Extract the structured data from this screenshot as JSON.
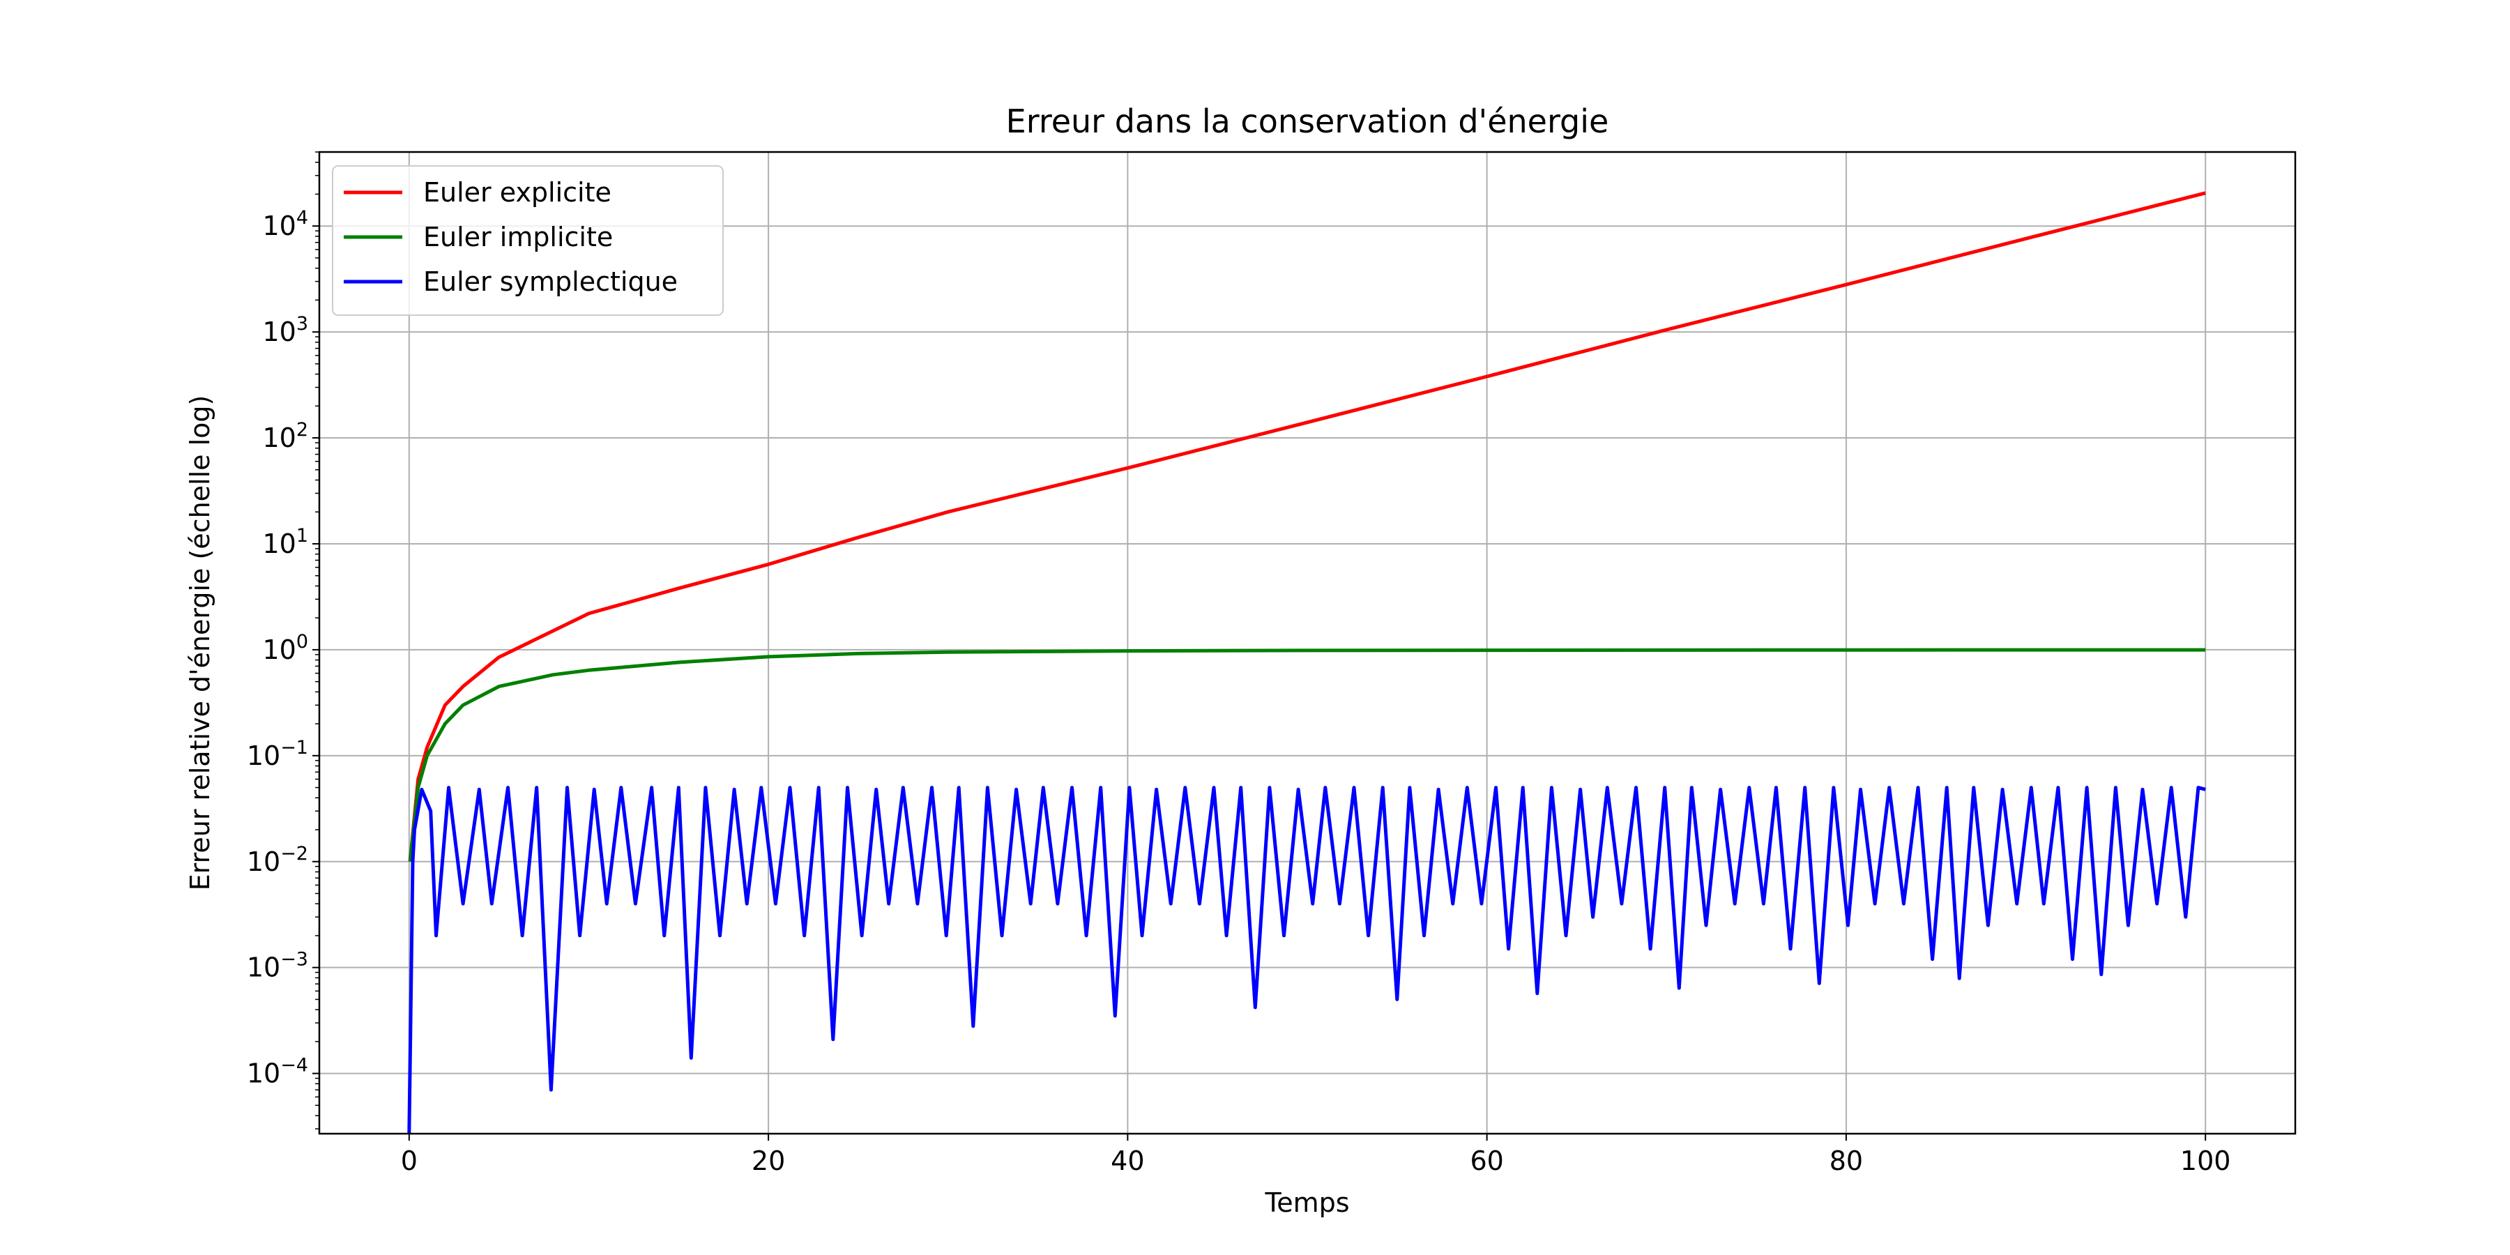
{
  "chart_data": {
    "type": "line",
    "title": "Erreur dans la conservation d'énergie",
    "xlabel": "Temps",
    "ylabel": "Erreur relative d'énergie (échelle log)",
    "xlim": [
      -5,
      105
    ],
    "ylim": [
      2.7e-05,
      50000
    ],
    "yscale": "log",
    "xticks": [
      0,
      20,
      40,
      60,
      80,
      100
    ],
    "yticks": [
      {
        "value": 0.0001,
        "base": "10",
        "exp": "−4"
      },
      {
        "value": 0.001,
        "base": "10",
        "exp": "−3"
      },
      {
        "value": 0.01,
        "base": "10",
        "exp": "−2"
      },
      {
        "value": 0.1,
        "base": "10",
        "exp": "−1"
      },
      {
        "value": 1,
        "base": "10",
        "exp": "0"
      },
      {
        "value": 10,
        "base": "10",
        "exp": "1"
      },
      {
        "value": 100,
        "base": "10",
        "exp": "2"
      },
      {
        "value": 1000,
        "base": "10",
        "exp": "3"
      },
      {
        "value": 10000,
        "base": "10",
        "exp": "4"
      }
    ],
    "grid": true,
    "legend_position": "top-left",
    "series": [
      {
        "name": "Euler explicite",
        "color": "#ff0000",
        "x": [
          0.05,
          0.5,
          1,
          2,
          3,
          5,
          10,
          15,
          20,
          25,
          30,
          40,
          50,
          60,
          70,
          80,
          90,
          100
        ],
        "y": [
          0.01,
          0.06,
          0.12,
          0.3,
          0.45,
          0.85,
          2.2,
          3.8,
          6.4,
          11.5,
          20,
          52,
          140,
          380,
          1050,
          2800,
          7600,
          20500
        ]
      },
      {
        "name": "Euler implicite",
        "color": "#008000",
        "x": [
          0.05,
          0.5,
          1,
          2,
          3,
          5,
          8,
          10,
          15,
          20,
          25,
          30,
          40,
          50,
          60,
          80,
          100
        ],
        "y": [
          0.01,
          0.05,
          0.1,
          0.2,
          0.3,
          0.45,
          0.58,
          0.64,
          0.76,
          0.86,
          0.92,
          0.95,
          0.975,
          0.985,
          0.99,
          0.995,
          0.997
        ]
      },
      {
        "name": "Euler symplectique",
        "color": "#0000ff",
        "x": [
          0,
          0.2,
          0.3,
          0.7,
          1.2,
          1.5,
          2.2,
          3.0,
          3.9,
          4.6,
          5.5,
          6.3,
          7.1,
          7.9,
          8.8,
          9.5,
          10.3,
          11.0,
          11.8,
          12.6,
          13.5,
          14.2,
          15.0,
          15.7,
          16.5,
          17.3,
          18.1,
          18.8,
          19.6,
          20.4,
          21.2,
          22.0,
          22.8,
          23.6,
          24.4,
          25.2,
          26.0,
          26.7,
          27.5,
          28.3,
          29.1,
          29.9,
          30.6,
          31.4,
          32.2,
          33.0,
          33.8,
          34.6,
          35.3,
          36.1,
          36.9,
          37.7,
          38.5,
          39.3,
          40.1,
          40.8,
          41.6,
          42.4,
          43.2,
          44.0,
          44.8,
          45.5,
          46.3,
          47.1,
          47.9,
          48.7,
          49.5,
          50.3,
          51.0,
          51.8,
          52.6,
          53.4,
          54.2,
          55.0,
          55.7,
          56.5,
          57.3,
          58.1,
          58.9,
          59.7,
          60.5,
          61.2,
          62.0,
          62.8,
          63.6,
          64.4,
          65.2,
          65.9,
          66.7,
          67.5,
          68.3,
          69.1,
          69.9,
          70.7,
          71.4,
          72.2,
          73.0,
          73.8,
          74.6,
          75.4,
          76.1,
          76.9,
          77.7,
          78.5,
          79.3,
          80.1,
          80.8,
          81.6,
          82.4,
          83.2,
          84.0,
          84.8,
          85.6,
          86.3,
          87.1,
          87.9,
          88.7,
          89.5,
          90.3,
          91.0,
          91.8,
          92.6,
          93.4,
          94.2,
          95.0,
          95.7,
          96.5,
          97.3,
          98.1,
          98.9,
          99.6,
          100
        ],
        "y": [
          2.7e-05,
          0.01,
          0.02,
          0.048,
          0.03,
          0.002,
          0.05,
          0.004,
          0.048,
          0.004,
          0.05,
          0.002,
          0.05,
          7e-05,
          0.05,
          0.002,
          0.048,
          0.004,
          0.05,
          0.004,
          0.05,
          0.002,
          0.05,
          0.00014,
          0.05,
          0.002,
          0.048,
          0.004,
          0.05,
          0.004,
          0.05,
          0.002,
          0.05,
          0.00021,
          0.05,
          0.002,
          0.048,
          0.004,
          0.05,
          0.004,
          0.05,
          0.002,
          0.05,
          0.00028,
          0.05,
          0.002,
          0.048,
          0.004,
          0.05,
          0.004,
          0.05,
          0.002,
          0.05,
          0.00035,
          0.05,
          0.002,
          0.048,
          0.004,
          0.05,
          0.004,
          0.05,
          0.002,
          0.05,
          0.00042,
          0.05,
          0.002,
          0.048,
          0.004,
          0.05,
          0.004,
          0.05,
          0.002,
          0.05,
          0.0005,
          0.05,
          0.002,
          0.048,
          0.004,
          0.05,
          0.004,
          0.05,
          0.0015,
          0.05,
          0.00057,
          0.05,
          0.002,
          0.048,
          0.003,
          0.05,
          0.004,
          0.05,
          0.0015,
          0.05,
          0.00064,
          0.05,
          0.0025,
          0.048,
          0.004,
          0.05,
          0.004,
          0.05,
          0.0015,
          0.05,
          0.00071,
          0.05,
          0.0025,
          0.048,
          0.004,
          0.05,
          0.004,
          0.05,
          0.0012,
          0.05,
          0.00079,
          0.05,
          0.0025,
          0.048,
          0.004,
          0.05,
          0.004,
          0.05,
          0.0012,
          0.05,
          0.00086,
          0.05,
          0.0025,
          0.048,
          0.004,
          0.05,
          0.003,
          0.05,
          0.048
        ]
      }
    ]
  }
}
